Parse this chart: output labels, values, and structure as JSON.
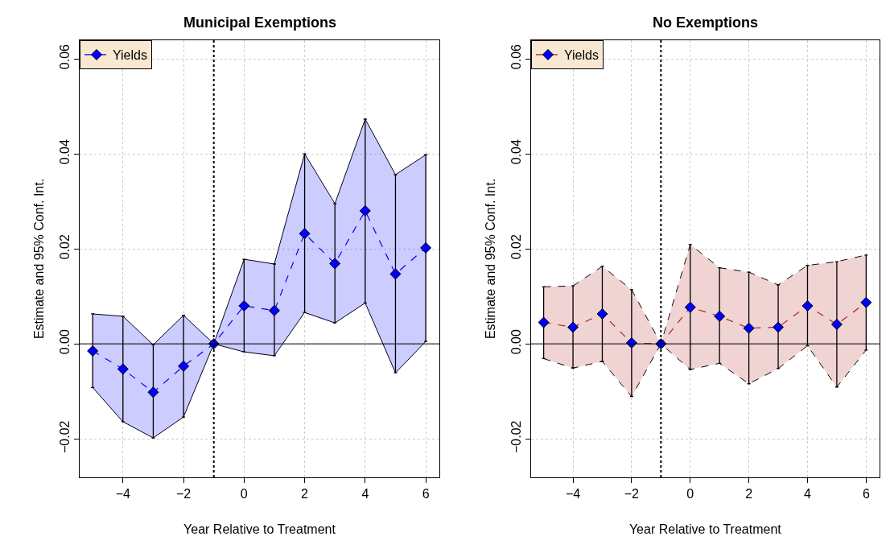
{
  "chart_data": [
    {
      "type": "line",
      "title": "Municipal Exemptions",
      "xlabel": "Year Relative to Treatment",
      "ylabel": "Estimate and 95% Conf. Int.",
      "x": [
        -5,
        -4,
        -3,
        -2,
        -1,
        0,
        1,
        2,
        3,
        4,
        5,
        6
      ],
      "series": [
        {
          "color": "#000000",
          "line_style": "solid",
          "marker": "none",
          "values": [
            -0.0092,
            -0.0164,
            -0.0198,
            -0.0154,
            0,
            -0.0017,
            -0.0025,
            0.0066,
            0.0044,
            0.0086,
            -0.0061,
            0.0005
          ]
        },
        {
          "color": "#000000",
          "line_style": "solid",
          "marker": "none",
          "values": [
            0.0063,
            0.0058,
            -0.0002,
            0.006,
            0,
            0.0178,
            0.0168,
            0.04,
            0.0295,
            0.0473,
            0.0356,
            0.0398
          ]
        },
        {
          "name": "Yields",
          "color": "#0000ff",
          "colors": [
            "#0000ff",
            "#0000ff",
            "#0000ff",
            "#0000ff",
            "#0000ff",
            "#0000ff",
            "#0000ff",
            "#0000ff",
            "#0000ff",
            "#0000ff",
            "#0000ff",
            "#0000ff"
          ],
          "line_style": "dashed",
          "marker": "diamond",
          "values": [
            -0.0015,
            -0.0053,
            -0.0102,
            -0.0047,
            0,
            0.008,
            0.007,
            0.0232,
            0.0169,
            0.028,
            0.0147,
            0.0202
          ],
          "errors": [
            [
              -0.0092,
              0.0063
            ],
            [
              -0.0164,
              0.0058
            ],
            [
              -0.0198,
              -0.0002
            ],
            [
              -0.0154,
              0.006
            ],
            null,
            [
              -0.0017,
              0.0178
            ],
            [
              -0.0025,
              0.0168
            ],
            [
              0.0066,
              0.04
            ],
            [
              0.0044,
              0.0295
            ],
            [
              0.0086,
              0.0473
            ],
            [
              -0.0061,
              0.0356
            ],
            [
              0.0005,
              0.0398
            ]
          ],
          "lower": [
            -0.0092,
            -0.0164,
            -0.0198,
            -0.0154,
            0,
            -0.0017,
            -0.0025,
            0.0066,
            0.0044,
            0.0086,
            -0.0061,
            0.0005
          ],
          "upper": [
            0.0063,
            0.0058,
            -0.0002,
            0.006,
            0,
            0.0178,
            0.0168,
            0.04,
            0.0295,
            0.0473,
            0.0356,
            0.0398
          ]
        }
      ],
      "xlim": [
        -5.43,
        6.45
      ],
      "xticks": [
        -4,
        -2,
        0,
        2,
        4,
        6
      ],
      "ylim": [
        -0.0281,
        0.0639
      ],
      "yticks": [
        {
          "value": -0.02,
          "label": "−0.02"
        },
        {
          "value": 0,
          "label": "0.00"
        },
        {
          "value": 0.02,
          "label": "0.02"
        },
        {
          "value": 0.04,
          "label": "0.04"
        },
        {
          "value": 0.06,
          "label": "0.06"
        }
      ],
      "ref_lines": [
        {
          "axis": "x",
          "value": -1,
          "color": "#000000",
          "line_style": "dotted"
        },
        {
          "axis": "y",
          "value": 0,
          "color": "#000000",
          "line_style": "solid"
        }
      ],
      "grid": true,
      "legend": "top left"
    },
    {
      "type": "line",
      "title": "No Exemptions",
      "xlabel": "Year Relative to Treatment",
      "ylabel": "Estimate and 95% Conf. Int.",
      "x": [
        -5,
        -4,
        -3,
        -2,
        -1,
        0,
        1,
        2,
        3,
        4,
        5,
        6
      ],
      "series": [
        {
          "color": "#000000",
          "line_style": "dashed",
          "marker": "none",
          "values": [
            -0.0031,
            -0.0051,
            -0.0037,
            -0.0111,
            0,
            -0.0054,
            -0.0041,
            -0.0084,
            -0.0052,
            -0.0004,
            -0.0091,
            -0.0013
          ]
        },
        {
          "color": "#000000",
          "line_style": "dashed",
          "marker": "none",
          "values": [
            0.012,
            0.0122,
            0.0163,
            0.0114,
            0,
            0.0209,
            0.016,
            0.0151,
            0.0124,
            0.0165,
            0.0173,
            0.0187
          ]
        },
        {
          "name": "Yields",
          "color": "#b22222",
          "colors": [
            "#0000ff",
            "#0000ff",
            "#0000ff",
            "#0000ff",
            "#0000ff",
            "#0000ff",
            "#0000ff",
            "#0000ff",
            "#0000ff",
            "#0000ff",
            "#0000ff",
            "#0000ff"
          ],
          "line_style": "dashed",
          "marker": "diamond",
          "values": [
            0.0045,
            0.0035,
            0.0063,
            0.0002,
            0,
            0.0077,
            0.0058,
            0.0033,
            0.0035,
            0.008,
            0.0041,
            0.0087
          ],
          "errors": [
            [
              -0.0031,
              0.012
            ],
            [
              -0.0051,
              0.0122
            ],
            [
              -0.0037,
              0.0163
            ],
            [
              -0.0111,
              0.0114
            ],
            null,
            [
              -0.0054,
              0.0209
            ],
            [
              -0.0041,
              0.016
            ],
            [
              -0.0084,
              0.0151
            ],
            [
              -0.0052,
              0.0124
            ],
            [
              -0.0004,
              0.0165
            ],
            [
              -0.0091,
              0.0173
            ],
            [
              -0.0013,
              0.0187
            ]
          ],
          "lower": [
            -0.0031,
            -0.0051,
            -0.0037,
            -0.0111,
            0,
            -0.0054,
            -0.0041,
            -0.0084,
            -0.0052,
            -0.0004,
            -0.0091,
            -0.0013
          ],
          "upper": [
            0.012,
            0.0122,
            0.0163,
            0.0114,
            0,
            0.0209,
            0.016,
            0.0151,
            0.0124,
            0.0165,
            0.0173,
            0.0187
          ]
        }
      ],
      "xlim": [
        -5.43,
        6.45
      ],
      "xticks": [
        -4,
        -2,
        0,
        2,
        4,
        6
      ],
      "ylim": [
        -0.0281,
        0.0639
      ],
      "yticks": [
        {
          "value": -0.02,
          "label": "−0.02"
        },
        {
          "value": 0,
          "label": "0.00"
        },
        {
          "value": 0.02,
          "label": "0.02"
        },
        {
          "value": 0.04,
          "label": "0.04"
        },
        {
          "value": 0.06,
          "label": "0.06"
        }
      ],
      "ref_lines": [
        {
          "axis": "x",
          "value": -1,
          "color": "#000000",
          "line_style": "dotted"
        },
        {
          "axis": "y",
          "value": 0,
          "color": "#000000",
          "line_style": "solid"
        }
      ],
      "grid": true,
      "legend": "top left"
    }
  ]
}
